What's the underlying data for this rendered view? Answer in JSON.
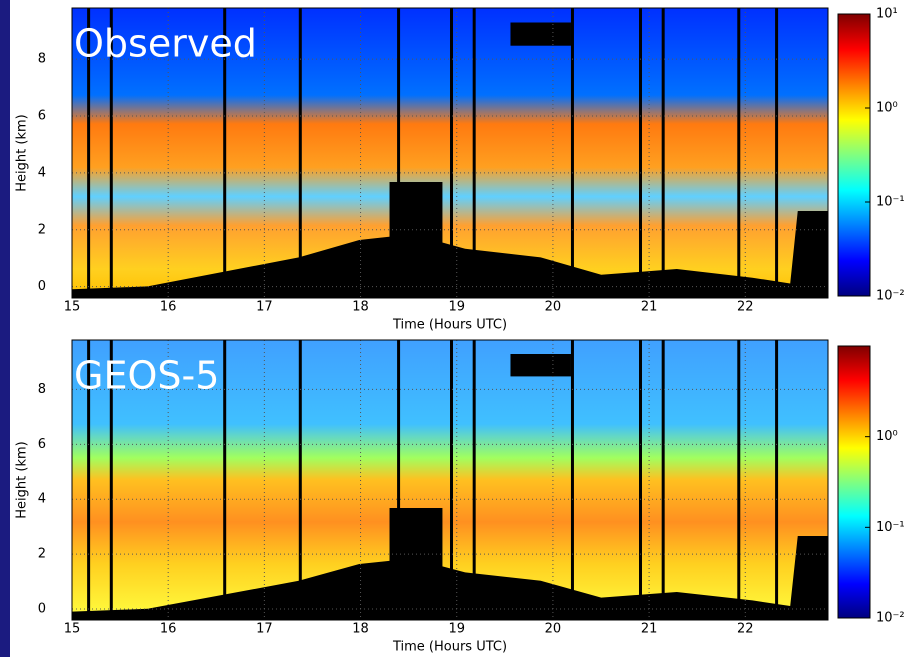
{
  "chart_data": [
    {
      "type": "heatmap",
      "title": "Observed",
      "xlabel": "Time (Hours UTC)",
      "ylabel": "Height (km)",
      "xlim": [
        15,
        22.86
      ],
      "xticks": [
        15,
        16,
        17,
        18,
        19,
        20,
        21,
        22
      ],
      "ylim": [
        -0.4,
        9.8
      ],
      "yticks": [
        0,
        2,
        4,
        6,
        8
      ],
      "grid": true,
      "colormap": [
        "#00007f",
        "#0000ff",
        "#0080ff",
        "#00ffff",
        "#80ff80",
        "#ffff00",
        "#ff8000",
        "#ff0000",
        "#7f0000"
      ],
      "colorbar": {
        "scale": "log",
        "lim": [
          0.01,
          10
        ],
        "ticks": [
          {
            "value": 10,
            "label": "10¹"
          },
          {
            "value": 1,
            "label": "10⁰"
          },
          {
            "value": 0.1,
            "label": "10⁻¹"
          },
          {
            "value": 0.01,
            "label": "10⁻²"
          }
        ]
      }
    },
    {
      "type": "heatmap",
      "title": "GEOS-5",
      "xlabel": "Time (Hours UTC)",
      "ylabel": "Height (km)",
      "xlim": [
        15,
        22.86
      ],
      "xticks": [
        15,
        16,
        17,
        18,
        19,
        20,
        21,
        22
      ],
      "ylim": [
        -0.4,
        9.8
      ],
      "yticks": [
        0,
        2,
        4,
        6,
        8
      ],
      "grid": true,
      "colormap": [
        "#00007f",
        "#0000ff",
        "#0080ff",
        "#00ffff",
        "#80ff80",
        "#ffff00",
        "#ff8000",
        "#ff0000",
        "#7f0000"
      ],
      "colorbar": {
        "scale": "log",
        "lim": [
          0.01,
          10
        ],
        "ticks": [
          {
            "value": 1,
            "label": "10⁰"
          },
          {
            "value": 0.1,
            "label": "10⁻¹"
          },
          {
            "value": 0.01,
            "label": "10⁻²"
          }
        ]
      }
    }
  ]
}
